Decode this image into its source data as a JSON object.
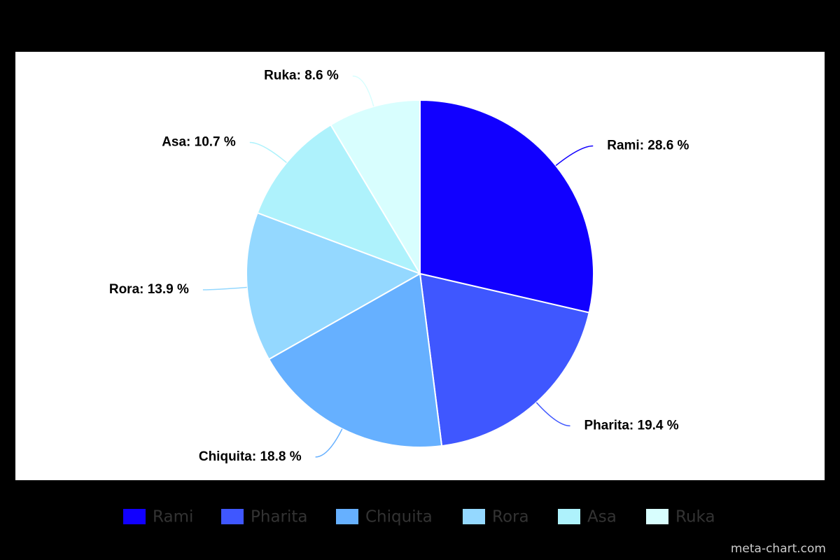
{
  "chart_data": {
    "type": "pie",
    "categories": [
      "Rami",
      "Pharita",
      "Chiquita",
      "Rora",
      "Asa",
      "Ruka"
    ],
    "values": [
      28.6,
      19.4,
      18.8,
      13.9,
      10.7,
      8.6
    ],
    "value_labels": [
      "Rami: 28.6 %",
      "Pharita: 19.4 %",
      "Chiquita: 18.8 %",
      "Rora: 13.9 %",
      "Asa: 10.7 %",
      "Ruka: 8.6 %"
    ],
    "colors": [
      "#1100ff",
      "#3f57ff",
      "#66b0ff",
      "#94d8ff",
      "#aef2fc",
      "#d8fefe"
    ]
  },
  "credit": "meta-chart.com"
}
